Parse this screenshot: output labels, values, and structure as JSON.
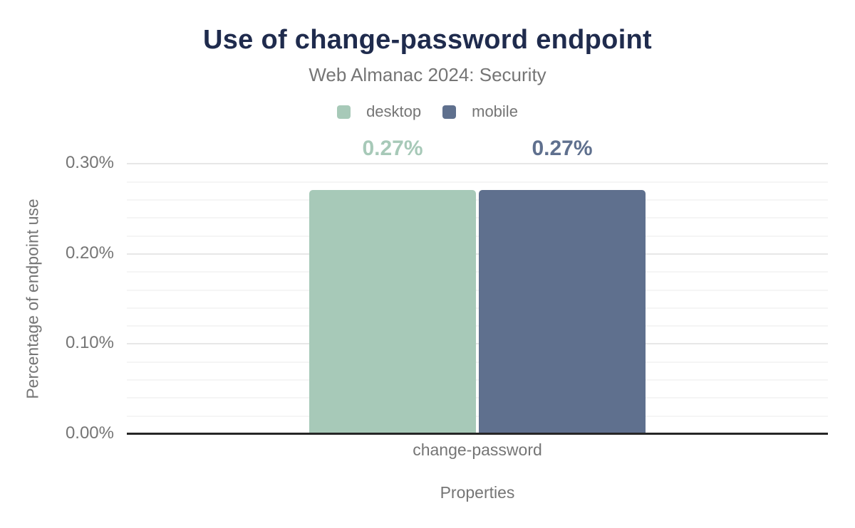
{
  "header": {
    "title": "Use of change-password endpoint",
    "subtitle": "Web Almanac 2024: Security"
  },
  "legend": {
    "items": [
      {
        "label": "desktop",
        "color": "#a7c9b8"
      },
      {
        "label": "mobile",
        "color": "#5f708e"
      }
    ]
  },
  "axes": {
    "y_title": "Percentage of endpoint use",
    "x_title": "Properties",
    "category": "change-password"
  },
  "chart_data": {
    "type": "bar",
    "title": "Use of change-password endpoint",
    "subtitle": "Web Almanac 2024: Security",
    "categories": [
      "change-password"
    ],
    "series": [
      {
        "name": "desktop",
        "values": [
          0.27
        ],
        "data_label": "0.27%",
        "color": "#a7c9b8"
      },
      {
        "name": "mobile",
        "values": [
          0.27
        ],
        "data_label": "0.27%",
        "color": "#5f708e"
      }
    ],
    "xlabel": "Properties",
    "ylabel": "Percentage of endpoint use",
    "ylim": [
      0,
      0.32
    ],
    "yticks": [
      {
        "value": 0.0,
        "label": "0.00%"
      },
      {
        "value": 0.1,
        "label": "0.10%"
      },
      {
        "value": 0.2,
        "label": "0.20%"
      },
      {
        "value": 0.3,
        "label": "0.30%"
      }
    ],
    "grid": {
      "orientation": "horizontal",
      "minor_step": 0.02,
      "major_step": 0.1
    },
    "legend_position": "top",
    "colors": {
      "title": "#1f2b4d",
      "text_muted": "#757575",
      "axis_line": "#262626",
      "gridline_major": "#e7e7e7",
      "gridline_minor": "#f5f5f5",
      "background": "#ffffff"
    }
  }
}
